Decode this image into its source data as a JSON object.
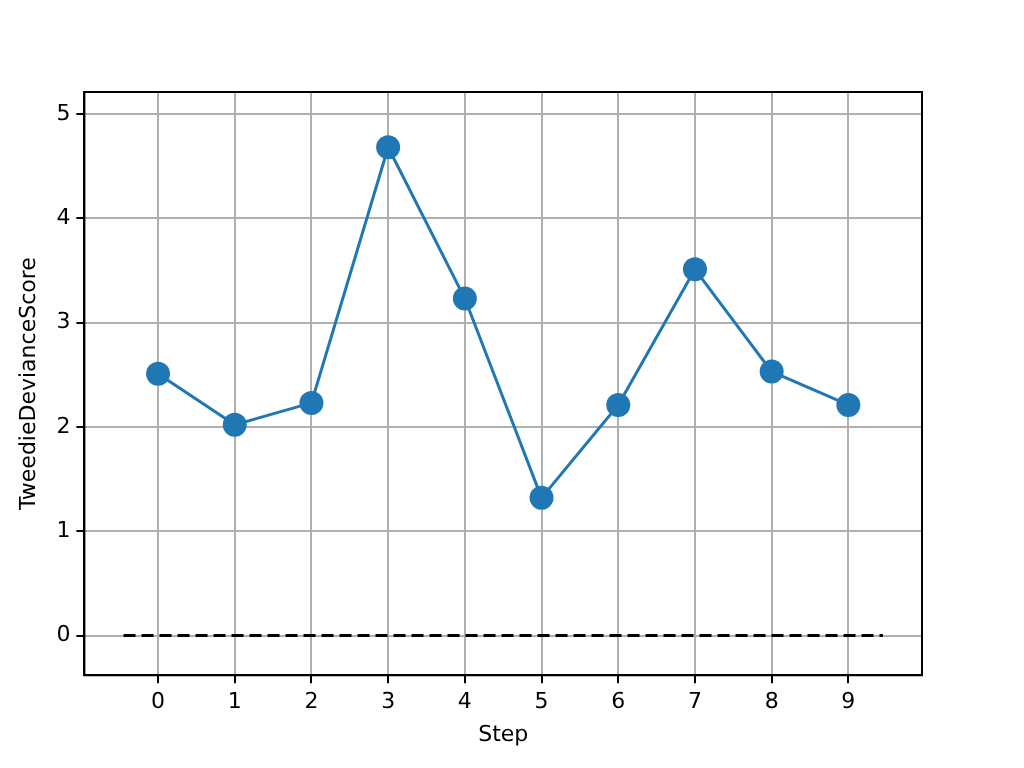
{
  "chart_data": {
    "type": "line",
    "xlabel": "Step",
    "ylabel": "TweedieDevianceScore",
    "x": [
      0,
      1,
      2,
      3,
      4,
      5,
      6,
      7,
      8,
      9
    ],
    "series": [
      {
        "color": "#1f77b4",
        "values": [
          2.51,
          2.02,
          2.23,
          4.68,
          3.23,
          1.32,
          2.21,
          3.51,
          2.53,
          2.21
        ],
        "marker": "circle",
        "line_style": "solid"
      },
      {
        "color": "#000000",
        "x": [
          -0.45,
          9.45
        ],
        "values": [
          0,
          0
        ],
        "marker": "none",
        "line_style": "dashed"
      }
    ],
    "xlim": [
      -0.96,
      9.96
    ],
    "xticks": [
      0,
      1,
      2,
      3,
      4,
      5,
      6,
      7,
      8,
      9
    ],
    "ylim": [
      -0.38,
      5.21
    ],
    "yticks": [
      0,
      1,
      2,
      3,
      4,
      5
    ],
    "grid": true,
    "legend": false
  }
}
